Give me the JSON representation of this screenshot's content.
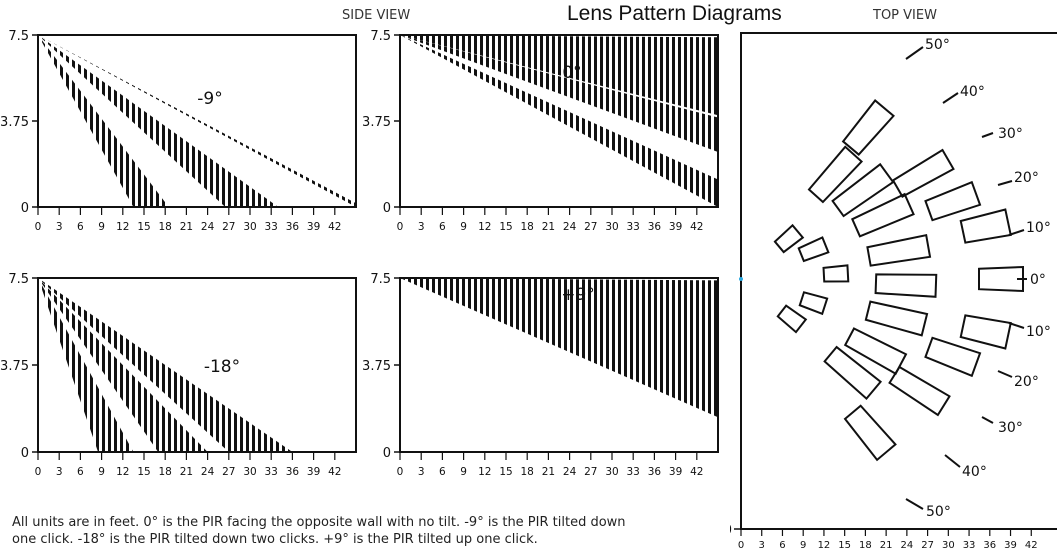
{
  "header": {
    "title": "Lens Pattern Diagrams",
    "side_view_label": "SIDE VIEW",
    "top_view_label": "TOP VIEW"
  },
  "side_view": {
    "y_ticks": [
      "7.5",
      "3.75",
      "0"
    ],
    "x_ticks": [
      "0",
      "3",
      "6",
      "9",
      "12",
      "15",
      "18",
      "21",
      "24",
      "27",
      "30",
      "33",
      "36",
      "39",
      "42"
    ],
    "panels": [
      {
        "tilt_label": "-9°",
        "tilt_deg": -9,
        "bands_hit_ground_ft": [
          [
            13.5,
            18.5
          ],
          [
            26.5,
            34
          ],
          [
            45,
            46
          ]
        ],
        "note": "ground intercepts of each shaded band"
      },
      {
        "tilt_label": "0°",
        "tilt_deg": 0,
        "bands_at_45ft": [
          [
            1.2,
            0.0
          ],
          [
            3.9,
            2.4
          ],
          [
            7.4,
            4.0
          ]
        ]
      },
      {
        "tilt_label": "-18°",
        "tilt_deg": -18,
        "bands_hit_ground_ft": [
          [
            8.5,
            13.5
          ],
          [
            17,
            24
          ],
          [
            27,
            36
          ]
        ]
      },
      {
        "tilt_label": "+9°",
        "tilt_deg": 9,
        "bands_at_45ft": [
          [
            4.0,
            1.5
          ],
          [
            6.5,
            3.5
          ],
          [
            7.4,
            4.8
          ]
        ]
      }
    ]
  },
  "top_view": {
    "angle_labels": [
      "50°",
      "40°",
      "30°",
      "20°",
      "10°",
      "0°",
      "10°",
      "20°",
      "30°",
      "40°",
      "50°"
    ],
    "y_tick": "0",
    "x_ticks": [
      "0",
      "3",
      "6",
      "9",
      "12",
      "15",
      "18",
      "21",
      "24",
      "27",
      "30",
      "33",
      "36",
      "39",
      "42"
    ]
  },
  "footnote": {
    "line1": "All units are in feet. 0° is the PIR facing the opposite wall with no tilt. -9° is the PIR tilted down",
    "line2": "one click. -18° is the PIR tilted down two clicks. +9° is the PIR tilted up one click."
  }
}
